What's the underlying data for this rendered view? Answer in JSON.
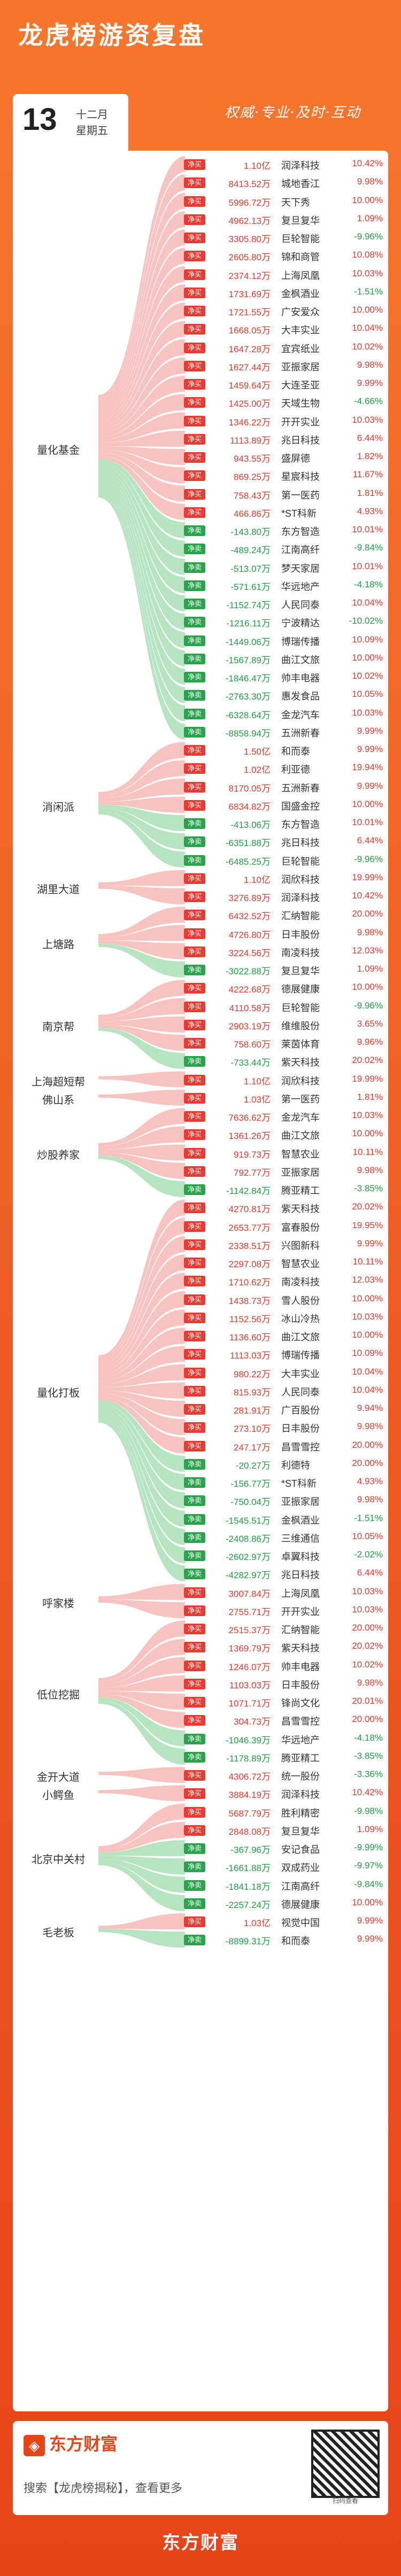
{
  "header": {
    "title": "龙虎榜游资复盘",
    "day": "13",
    "month": "十二月",
    "weekday": "星期五",
    "slogan": "权威·专业·及时·互动"
  },
  "seats": [
    {
      "name": "量化基金",
      "rows": [
        {
          "type": "净买",
          "amount": "1.10亿",
          "stock": "润泽科技",
          "change": "10.42%"
        },
        {
          "type": "净买",
          "amount": "8413.52万",
          "stock": "城地香江",
          "change": "9.98%"
        },
        {
          "type": "净买",
          "amount": "5996.72万",
          "stock": "天下秀",
          "change": "10.00%"
        },
        {
          "type": "净买",
          "amount": "4962.13万",
          "stock": "复旦复华",
          "change": "1.09%"
        },
        {
          "type": "净买",
          "amount": "3305.80万",
          "stock": "巨轮智能",
          "change": "-9.96%"
        },
        {
          "type": "净买",
          "amount": "2605.80万",
          "stock": "锦和商管",
          "change": "10.08%"
        },
        {
          "type": "净买",
          "amount": "2374.12万",
          "stock": "上海凤凰",
          "change": "10.03%"
        },
        {
          "type": "净买",
          "amount": "1731.69万",
          "stock": "金枫酒业",
          "change": "-1.51%"
        },
        {
          "type": "净买",
          "amount": "1721.55万",
          "stock": "广安爱众",
          "change": "10.00%"
        },
        {
          "type": "净买",
          "amount": "1668.05万",
          "stock": "大丰实业",
          "change": "10.04%"
        },
        {
          "type": "净买",
          "amount": "1647.28万",
          "stock": "宜宾纸业",
          "change": "10.02%"
        },
        {
          "type": "净买",
          "amount": "1627.44万",
          "stock": "亚振家居",
          "change": "9.98%"
        },
        {
          "type": "净买",
          "amount": "1459.64万",
          "stock": "大连圣亚",
          "change": "9.99%"
        },
        {
          "type": "净买",
          "amount": "1425.00万",
          "stock": "天域生物",
          "change": "-4.66%"
        },
        {
          "type": "净买",
          "amount": "1346.22万",
          "stock": "开开实业",
          "change": "10.03%"
        },
        {
          "type": "净买",
          "amount": "1113.89万",
          "stock": "兆日科技",
          "change": "6.44%"
        },
        {
          "type": "净买",
          "amount": "943.55万",
          "stock": "盛屏德",
          "change": "1.82%"
        },
        {
          "type": "净买",
          "amount": "869.25万",
          "stock": "星宸科技",
          "change": "11.67%"
        },
        {
          "type": "净买",
          "amount": "758.43万",
          "stock": "第一医药",
          "change": "1.81%"
        },
        {
          "type": "净买",
          "amount": "466.86万",
          "stock": "*ST科新",
          "change": "4.93%"
        },
        {
          "type": "净卖",
          "amount": "-143.80万",
          "stock": "东方智造",
          "change": "10.01%"
        },
        {
          "type": "净卖",
          "amount": "-489.24万",
          "stock": "江南高纤",
          "change": "-9.84%"
        },
        {
          "type": "净卖",
          "amount": "-513.07万",
          "stock": "梦天家居",
          "change": "10.01%"
        },
        {
          "type": "净卖",
          "amount": "-571.61万",
          "stock": "华远地产",
          "change": "-4.18%"
        },
        {
          "type": "净卖",
          "amount": "-1152.74万",
          "stock": "人民同泰",
          "change": "10.04%"
        },
        {
          "type": "净卖",
          "amount": "-1216.11万",
          "stock": "宁波精达",
          "change": "-10.02%"
        },
        {
          "type": "净卖",
          "amount": "-1449.06万",
          "stock": "博瑞传播",
          "change": "10.09%"
        },
        {
          "type": "净卖",
          "amount": "-1567.89万",
          "stock": "曲江文旅",
          "change": "10.00%"
        },
        {
          "type": "净卖",
          "amount": "-1846.47万",
          "stock": "帅丰电器",
          "change": "10.02%"
        },
        {
          "type": "净卖",
          "amount": "-2763.30万",
          "stock": "惠发食品",
          "change": "10.05%"
        },
        {
          "type": "净卖",
          "amount": "-6328.64万",
          "stock": "金龙汽车",
          "change": "10.03%"
        },
        {
          "type": "净卖",
          "amount": "-8858.94万",
          "stock": "五洲新春",
          "change": "9.99%"
        }
      ]
    },
    {
      "name": "消闲派",
      "rows": [
        {
          "type": "净买",
          "amount": "1.50亿",
          "stock": "和而泰",
          "change": "9.99%"
        },
        {
          "type": "净买",
          "amount": "1.02亿",
          "stock": "利亚德",
          "change": "19.94%"
        },
        {
          "type": "净买",
          "amount": "8170.05万",
          "stock": "五洲新春",
          "change": "9.99%"
        },
        {
          "type": "净买",
          "amount": "6834.82万",
          "stock": "国盛金控",
          "change": "10.00%"
        },
        {
          "type": "净卖",
          "amount": "-413.06万",
          "stock": "东方智造",
          "change": "10.01%"
        },
        {
          "type": "净卖",
          "amount": "-6351.88万",
          "stock": "兆日科技",
          "change": "6.44%"
        },
        {
          "type": "净卖",
          "amount": "-6485.25万",
          "stock": "巨轮智能",
          "change": "-9.96%"
        }
      ]
    },
    {
      "name": "湖里大道",
      "rows": [
        {
          "type": "净买",
          "amount": "1.10亿",
          "stock": "润欣科技",
          "change": "19.99%"
        },
        {
          "type": "净买",
          "amount": "3276.89万",
          "stock": "润泽科技",
          "change": "10.42%"
        }
      ]
    },
    {
      "name": "上塘路",
      "rows": [
        {
          "type": "净买",
          "amount": "6432.52万",
          "stock": "汇纳智能",
          "change": "20.00%"
        },
        {
          "type": "净买",
          "amount": "4726.80万",
          "stock": "日丰股份",
          "change": "9.98%"
        },
        {
          "type": "净买",
          "amount": "3224.56万",
          "stock": "南凌科技",
          "change": "12.03%"
        },
        {
          "type": "净卖",
          "amount": "-3022.88万",
          "stock": "复旦复华",
          "change": "1.09%"
        }
      ]
    },
    {
      "name": "南京帮",
      "rows": [
        {
          "type": "净买",
          "amount": "4222.68万",
          "stock": "德展健康",
          "change": "10.00%"
        },
        {
          "type": "净买",
          "amount": "4110.58万",
          "stock": "巨轮智能",
          "change": "-9.96%"
        },
        {
          "type": "净买",
          "amount": "2903.19万",
          "stock": "维维股份",
          "change": "3.65%"
        },
        {
          "type": "净买",
          "amount": "758.60万",
          "stock": "莱茵体育",
          "change": "9.96%"
        },
        {
          "type": "净卖",
          "amount": "-733.44万",
          "stock": "紫天科技",
          "change": "20.02%"
        }
      ]
    },
    {
      "name": "上海超短帮",
      "rows": [
        {
          "type": "净买",
          "amount": "1.10亿",
          "stock": "润欣科技",
          "change": "19.99%"
        }
      ]
    },
    {
      "name": "佛山系",
      "rows": [
        {
          "type": "净买",
          "amount": "1.03亿",
          "stock": "第一医药",
          "change": "1.81%"
        }
      ]
    },
    {
      "name": "炒股养家",
      "rows": [
        {
          "type": "净买",
          "amount": "7636.62万",
          "stock": "金龙汽车",
          "change": "10.03%"
        },
        {
          "type": "净买",
          "amount": "1361.26万",
          "stock": "曲江文旅",
          "change": "10.00%"
        },
        {
          "type": "净买",
          "amount": "919.73万",
          "stock": "智慧农业",
          "change": "10.11%"
        },
        {
          "type": "净买",
          "amount": "792.77万",
          "stock": "亚振家居",
          "change": "9.98%"
        },
        {
          "type": "净卖",
          "amount": "-1142.84万",
          "stock": "腾亚精工",
          "change": "-3.85%"
        }
      ]
    },
    {
      "name": "量化打板",
      "rows": [
        {
          "type": "净买",
          "amount": "4270.81万",
          "stock": "紫天科技",
          "change": "20.02%"
        },
        {
          "type": "净买",
          "amount": "2653.77万",
          "stock": "富春股份",
          "change": "19.95%"
        },
        {
          "type": "净买",
          "amount": "2338.51万",
          "stock": "兴图新科",
          "change": "9.99%"
        },
        {
          "type": "净买",
          "amount": "2297.08万",
          "stock": "智慧农业",
          "change": "10.11%"
        },
        {
          "type": "净买",
          "amount": "1710.62万",
          "stock": "南凌科技",
          "change": "12.03%"
        },
        {
          "type": "净买",
          "amount": "1438.73万",
          "stock": "雪人股份",
          "change": "10.00%"
        },
        {
          "type": "净买",
          "amount": "1152.56万",
          "stock": "冰山冷热",
          "change": "10.03%"
        },
        {
          "type": "净买",
          "amount": "1136.60万",
          "stock": "曲江文旅",
          "change": "10.00%"
        },
        {
          "type": "净买",
          "amount": "1113.03万",
          "stock": "博瑞传播",
          "change": "10.09%"
        },
        {
          "type": "净买",
          "amount": "980.22万",
          "stock": "大丰实业",
          "change": "10.04%"
        },
        {
          "type": "净买",
          "amount": "815.93万",
          "stock": "人民同泰",
          "change": "10.04%"
        },
        {
          "type": "净买",
          "amount": "281.91万",
          "stock": "广百股份",
          "change": "9.94%"
        },
        {
          "type": "净买",
          "amount": "273.10万",
          "stock": "日丰股份",
          "change": "9.98%"
        },
        {
          "type": "净买",
          "amount": "247.17万",
          "stock": "昌雪雪控",
          "change": "20.00%"
        },
        {
          "type": "净卖",
          "amount": "-20.27万",
          "stock": "利德特",
          "change": "20.00%"
        },
        {
          "type": "净卖",
          "amount": "-156.77万",
          "stock": "*ST科新",
          "change": "4.93%"
        },
        {
          "type": "净卖",
          "amount": "-750.04万",
          "stock": "亚振家居",
          "change": "9.98%"
        },
        {
          "type": "净卖",
          "amount": "-1545.51万",
          "stock": "金枫酒业",
          "change": "-1.51%"
        },
        {
          "type": "净卖",
          "amount": "-2408.86万",
          "stock": "三维通信",
          "change": "10.05%"
        },
        {
          "type": "净卖",
          "amount": "-2602.97万",
          "stock": "卓翼科技",
          "change": "-2.02%"
        },
        {
          "type": "净卖",
          "amount": "-4282.97万",
          "stock": "兆日科技",
          "change": "6.44%"
        }
      ]
    },
    {
      "name": "呼家楼",
      "rows": [
        {
          "type": "净买",
          "amount": "3007.84万",
          "stock": "上海凤凰",
          "change": "10.03%"
        },
        {
          "type": "净买",
          "amount": "2755.71万",
          "stock": "开开实业",
          "change": "10.03%"
        }
      ]
    },
    {
      "name": "低位挖掘",
      "rows": [
        {
          "type": "净买",
          "amount": "2515.37万",
          "stock": "汇纳智能",
          "change": "20.00%"
        },
        {
          "type": "净买",
          "amount": "1369.79万",
          "stock": "紫天科技",
          "change": "20.02%"
        },
        {
          "type": "净买",
          "amount": "1246.07万",
          "stock": "帅丰电器",
          "change": "10.02%"
        },
        {
          "type": "净买",
          "amount": "1103.03万",
          "stock": "日丰股份",
          "change": "9.98%"
        },
        {
          "type": "净买",
          "amount": "1071.71万",
          "stock": "锋尚文化",
          "change": "20.01%"
        },
        {
          "type": "净买",
          "amount": "304.73万",
          "stock": "昌雪雪控",
          "change": "20.00%"
        },
        {
          "type": "净卖",
          "amount": "-1046.39万",
          "stock": "华远地产",
          "change": "-4.18%"
        },
        {
          "type": "净卖",
          "amount": "-1178.89万",
          "stock": "腾亚精工",
          "change": "-3.85%"
        }
      ]
    },
    {
      "name": "金开大道",
      "rows": [
        {
          "type": "净买",
          "amount": "4306.72万",
          "stock": "统一股份",
          "change": "-3.36%"
        }
      ]
    },
    {
      "name": "小鳄鱼",
      "rows": [
        {
          "type": "净买",
          "amount": "3884.19万",
          "stock": "润泽科技",
          "change": "10.42%"
        }
      ]
    },
    {
      "name": "北京中关村",
      "rows": [
        {
          "type": "净买",
          "amount": "5687.79万",
          "stock": "胜利精密",
          "change": "-9.98%"
        },
        {
          "type": "净买",
          "amount": "2848.08万",
          "stock": "复旦复华",
          "change": "1.09%"
        },
        {
          "type": "净卖",
          "amount": "-367.96万",
          "stock": "安记食品",
          "change": "-9.99%"
        },
        {
          "type": "净卖",
          "amount": "-1661.88万",
          "stock": "双成药业",
          "change": "-9.97%"
        },
        {
          "type": "净卖",
          "amount": "-1841.18万",
          "stock": "江南高纤",
          "change": "-9.84%"
        },
        {
          "type": "净卖",
          "amount": "-2257.24万",
          "stock": "德展健康",
          "change": "10.00%"
        }
      ]
    },
    {
      "name": "毛老板",
      "rows": [
        {
          "type": "净买",
          "amount": "1.03亿",
          "stock": "视觉中国",
          "change": "9.99%"
        },
        {
          "type": "净卖",
          "amount": "-8899.31万",
          "stock": "和而泰",
          "change": "9.99%"
        }
      ]
    }
  ],
  "footer": {
    "brand": "东方财富",
    "search_text": "搜索【龙虎榜揭秘】，查看更多",
    "qr_caption": "扫码查看",
    "bottom_brand": "东方财富"
  },
  "colors": {
    "buy": "#ea3b32",
    "sell": "#2aa44a",
    "accent": "#e8441a"
  }
}
